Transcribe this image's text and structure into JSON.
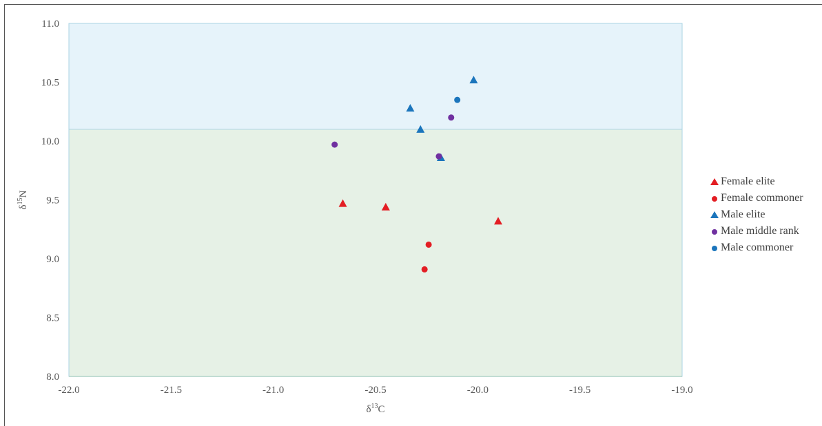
{
  "chart_data": {
    "type": "scatter",
    "title": "",
    "xlabel_base": "δ",
    "xlabel_sup": "13",
    "xlabel_tail": "C",
    "ylabel_base": "δ",
    "ylabel_sup": "15",
    "ylabel_tail": "N",
    "xlim": [
      -22.0,
      -19.0
    ],
    "ylim": [
      8.0,
      11.0
    ],
    "x_ticks": [
      "-22.0",
      "-21.5",
      "-21.0",
      "-20.5",
      "-20.0",
      "-19.5",
      "-19.0"
    ],
    "y_ticks": [
      "8.0",
      "8.5",
      "9.0",
      "9.5",
      "10.0",
      "10.5",
      "11.0"
    ],
    "x_tick_values": [
      -22.0,
      -21.5,
      -21.0,
      -20.5,
      -20.0,
      -19.5,
      -19.0
    ],
    "y_tick_values": [
      8.0,
      8.5,
      9.0,
      9.5,
      10.0,
      10.5,
      11.0
    ],
    "bands": [
      {
        "y_from": 10.1,
        "y_to": 11.0,
        "color": "#e6f3fa"
      },
      {
        "y_from": 8.0,
        "y_to": 10.1,
        "color": "#e6f1e6"
      }
    ],
    "legend_position": "right",
    "series": [
      {
        "name": "Female elite",
        "marker": "triangle",
        "color": "#e31e24",
        "points": [
          [
            -20.66,
            9.47
          ],
          [
            -20.45,
            9.44
          ],
          [
            -19.9,
            9.32
          ]
        ]
      },
      {
        "name": "Female commoner",
        "marker": "circle",
        "color": "#e31e24",
        "points": [
          [
            -20.24,
            9.12
          ],
          [
            -20.26,
            8.91
          ]
        ]
      },
      {
        "name": "Male elite",
        "marker": "triangle",
        "color": "#1b75bc",
        "points": [
          [
            -20.02,
            10.52
          ],
          [
            -20.33,
            10.28
          ],
          [
            -20.28,
            10.1
          ],
          [
            -20.18,
            9.86
          ]
        ]
      },
      {
        "name": "Male middle rank",
        "marker": "circle",
        "color": "#7030a0",
        "points": [
          [
            -20.7,
            9.97
          ],
          [
            -20.13,
            10.2
          ],
          [
            -20.19,
            9.87
          ]
        ]
      },
      {
        "name": "Male commoner",
        "marker": "circle",
        "color": "#1b75bc",
        "points": [
          [
            -20.1,
            10.35
          ]
        ]
      }
    ]
  }
}
